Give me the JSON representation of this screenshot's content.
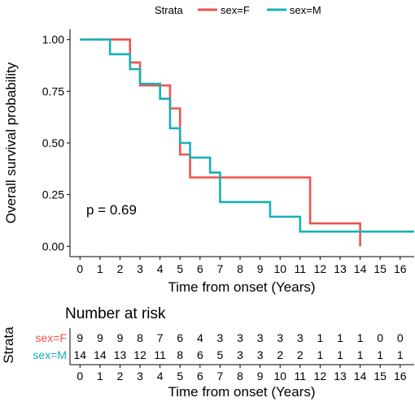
{
  "chart_data": {
    "type": "line",
    "ylabel": "Overall survival probability",
    "xlabel": "Time from onset (Years)",
    "xlim": [
      -0.5,
      16.7
    ],
    "ylim": [
      -0.05,
      1.05
    ],
    "x_ticks": [
      "0",
      "1",
      "2",
      "3",
      "4",
      "5",
      "6",
      "7",
      "8",
      "9",
      "10",
      "11",
      "12",
      "13",
      "14",
      "15",
      "16"
    ],
    "y_ticks": [
      "0.00",
      "0.25",
      "0.50",
      "0.75",
      "1.00"
    ],
    "y_tick_values": [
      0,
      0.25,
      0.5,
      0.75,
      1
    ],
    "legend": {
      "title": "Strata",
      "position": "top"
    },
    "annotation": "p = 0.69",
    "series": [
      {
        "name": "sex=F",
        "color": "#F0524D",
        "steps": [
          [
            0,
            1.0
          ],
          [
            2.5,
            0.889
          ],
          [
            3.0,
            0.778
          ],
          [
            4.5,
            0.667
          ],
          [
            5.0,
            0.444
          ],
          [
            5.5,
            0.333
          ],
          [
            11.5,
            0.111
          ],
          [
            14.0,
            0.0
          ]
        ]
      },
      {
        "name": "sex=M",
        "color": "#15B1B7",
        "steps": [
          [
            0,
            1.0
          ],
          [
            1.5,
            0.929
          ],
          [
            2.5,
            0.857
          ],
          [
            3.0,
            0.786
          ],
          [
            4.0,
            0.714
          ],
          [
            4.5,
            0.571
          ],
          [
            5.0,
            0.5
          ],
          [
            5.5,
            0.429
          ],
          [
            6.5,
            0.357
          ],
          [
            7.0,
            0.214
          ],
          [
            9.5,
            0.143
          ],
          [
            11.0,
            0.071
          ],
          [
            16.7,
            0.071
          ]
        ]
      }
    ],
    "risk_table": {
      "title": "Number at risk",
      "strata_label": "Strata",
      "xlabel": "Time from onset (Years)",
      "rows": [
        {
          "label": "sex=F",
          "color": "#F0524D",
          "values": [
            9,
            9,
            9,
            8,
            7,
            6,
            4,
            3,
            3,
            3,
            3,
            3,
            1,
            1,
            1,
            0,
            0
          ]
        },
        {
          "label": "sex=M",
          "color": "#15B1B7",
          "values": [
            14,
            14,
            13,
            12,
            11,
            8,
            6,
            5,
            3,
            3,
            2,
            2,
            1,
            1,
            1,
            1,
            1
          ]
        }
      ]
    }
  }
}
